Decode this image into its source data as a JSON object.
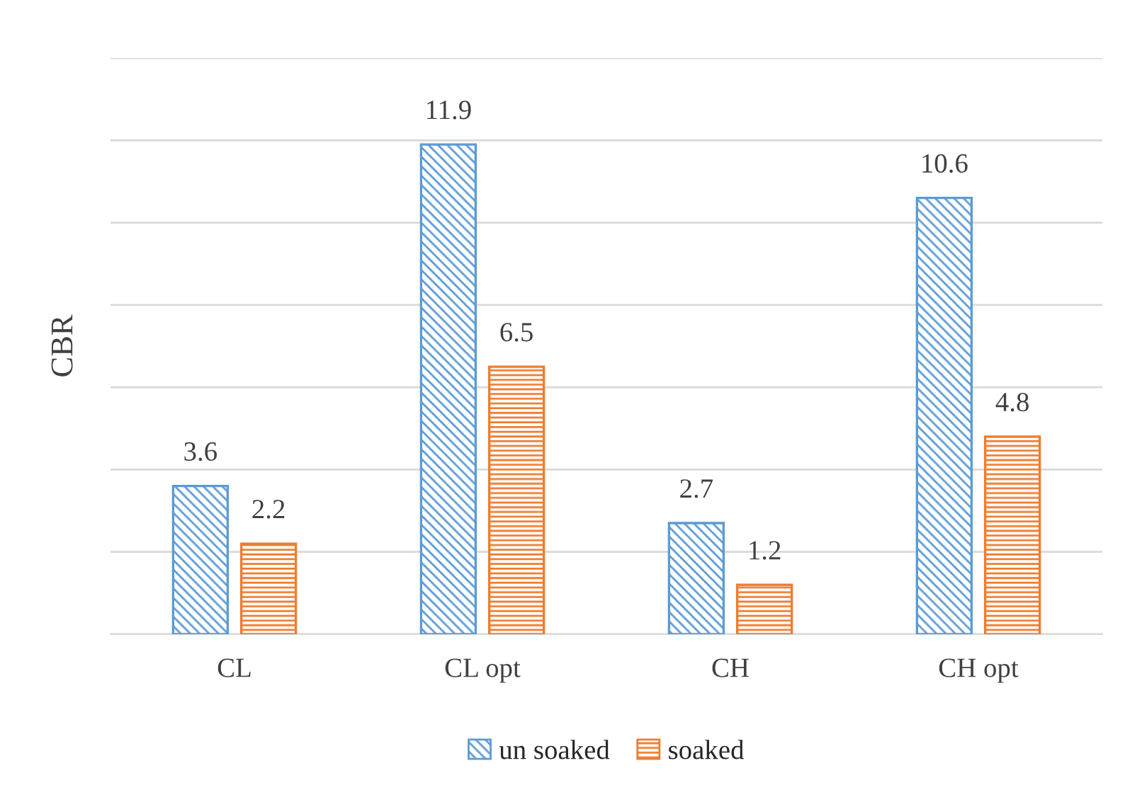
{
  "chart_data": {
    "type": "bar",
    "ylabel": "CBR",
    "categories": [
      "CL",
      "CL opt",
      "CH",
      "CH opt"
    ],
    "series": [
      {
        "name": "un soaked",
        "color": "#5b9bd5",
        "values": [
          3.6,
          11.9,
          2.7,
          10.6
        ]
      },
      {
        "name": "soaked",
        "color": "#ed7d31",
        "values": [
          2.2,
          6.5,
          1.2,
          4.8
        ]
      }
    ],
    "ylim": [
      0,
      14
    ],
    "yticks": [
      {
        "value": 0,
        "label": null
      },
      {
        "value": 2,
        "label": null
      },
      {
        "value": 4,
        "label": null
      },
      {
        "value": 6,
        "label": null
      },
      {
        "value": 8,
        "label": null
      },
      {
        "value": 10,
        "label": null
      },
      {
        "value": 12,
        "label": null
      },
      {
        "value": 14,
        "label": null
      }
    ],
    "grid": "y",
    "legend": "bottom",
    "data_labels": true
  }
}
